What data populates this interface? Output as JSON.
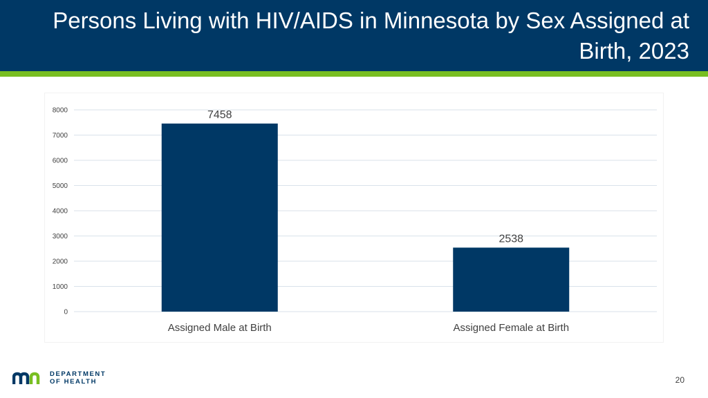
{
  "slide": {
    "title": "Persons Living with HIV/AIDS in Minnesota by Sex Assigned at Birth, 2023",
    "page_number": "20",
    "colors": {
      "header": "#003865",
      "accent": "#78be21",
      "bar": "#003865"
    }
  },
  "logo": {
    "mark": "mn",
    "line1": "DEPARTMENT",
    "line2": "OF HEALTH"
  },
  "chart_data": {
    "type": "bar",
    "title": "",
    "xlabel": "",
    "ylabel": "",
    "categories": [
      "Assigned Male at Birth",
      "Assigned Female at Birth"
    ],
    "values": [
      7458,
      2538
    ],
    "data_labels": [
      "7458",
      "2538"
    ],
    "ylim": [
      0,
      8000
    ],
    "yticks": [
      0,
      1000,
      2000,
      3000,
      4000,
      5000,
      6000,
      7000,
      8000
    ],
    "grid": true,
    "legend": "none"
  }
}
